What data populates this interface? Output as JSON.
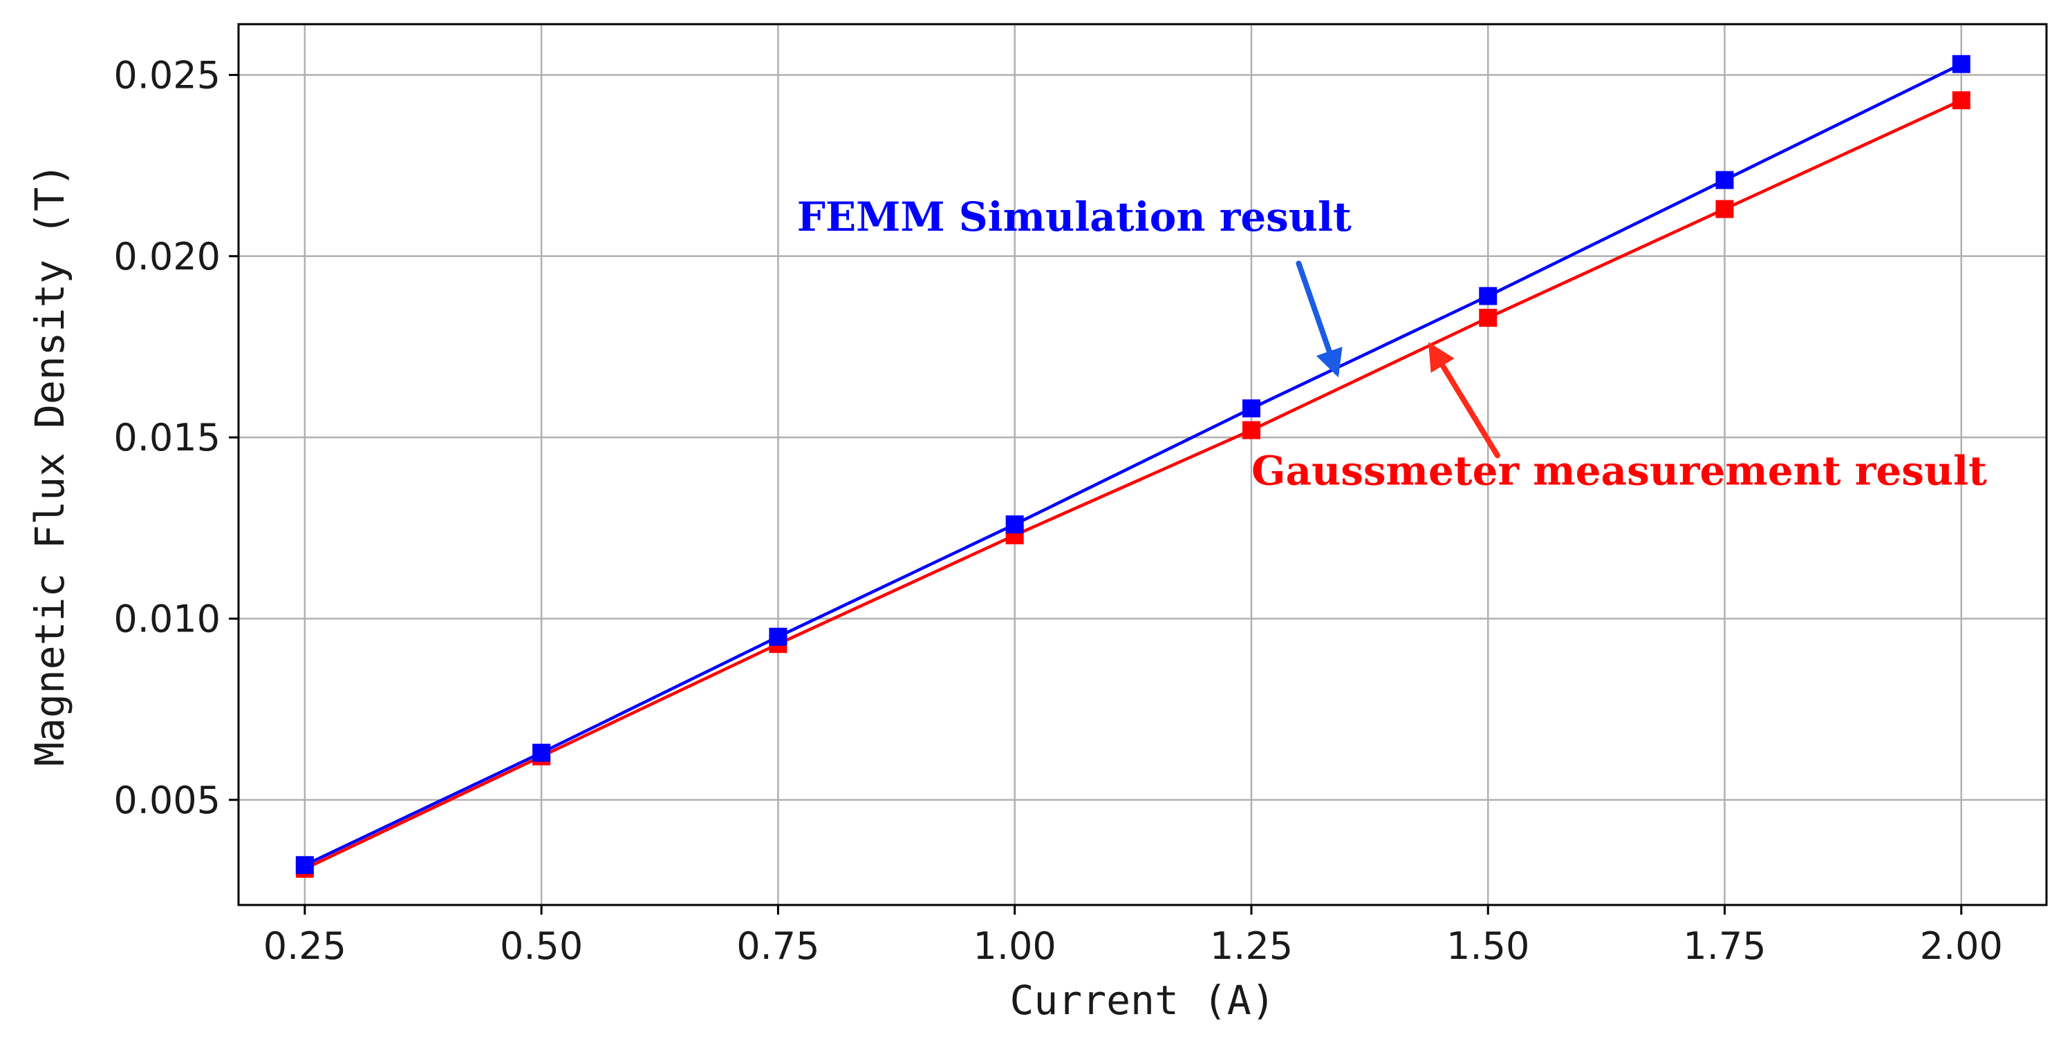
{
  "chart_data": {
    "type": "line",
    "xlabel": "Current (A)",
    "ylabel": "Magnetic Flux Density (T)",
    "xlim": [
      0.18,
      2.09
    ],
    "ylim": [
      0.0021,
      0.0264
    ],
    "xticks": [
      0.25,
      0.5,
      0.75,
      1.0,
      1.25,
      1.5,
      1.75,
      2.0
    ],
    "xtick_labels": [
      "0.25",
      "0.50",
      "0.75",
      "1.00",
      "1.25",
      "1.50",
      "1.75",
      "2.00"
    ],
    "yticks": [
      0.005,
      0.01,
      0.015,
      0.02,
      0.025
    ],
    "ytick_labels": [
      "0.005",
      "0.010",
      "0.015",
      "0.020",
      "0.025"
    ],
    "grid": true,
    "legend": "none",
    "x": [
      0.25,
      0.5,
      0.75,
      1.0,
      1.25,
      1.5,
      1.75,
      2.0
    ],
    "series": [
      {
        "key": "femm",
        "color": "#0000ff",
        "marker": "square",
        "values": [
          0.0032,
          0.0063,
          0.0095,
          0.0126,
          0.0158,
          0.0189,
          0.0221,
          0.0253
        ]
      },
      {
        "key": "gaussmeter",
        "color": "#ff0000",
        "marker": "square",
        "values": [
          0.0031,
          0.0062,
          0.0093,
          0.0123,
          0.0152,
          0.0183,
          0.0213,
          0.0243
        ]
      }
    ],
    "annotations": [
      {
        "text": "FEMM Simulation result",
        "color": "#0000ff",
        "arrow_color": "#1a5ce6",
        "label_at": [
          0.77,
          0.0207
        ],
        "arrow_from": [
          1.3,
          0.0198
        ],
        "arrow_to": [
          1.34,
          0.0168
        ]
      },
      {
        "text": "Gaussmeter measurement result",
        "color": "#ff0000",
        "arrow_color": "#ff2a1a",
        "label_at": [
          1.25,
          0.0137
        ],
        "arrow_from": [
          1.51,
          0.0145
        ],
        "arrow_to": [
          1.44,
          0.0175
        ]
      }
    ]
  }
}
